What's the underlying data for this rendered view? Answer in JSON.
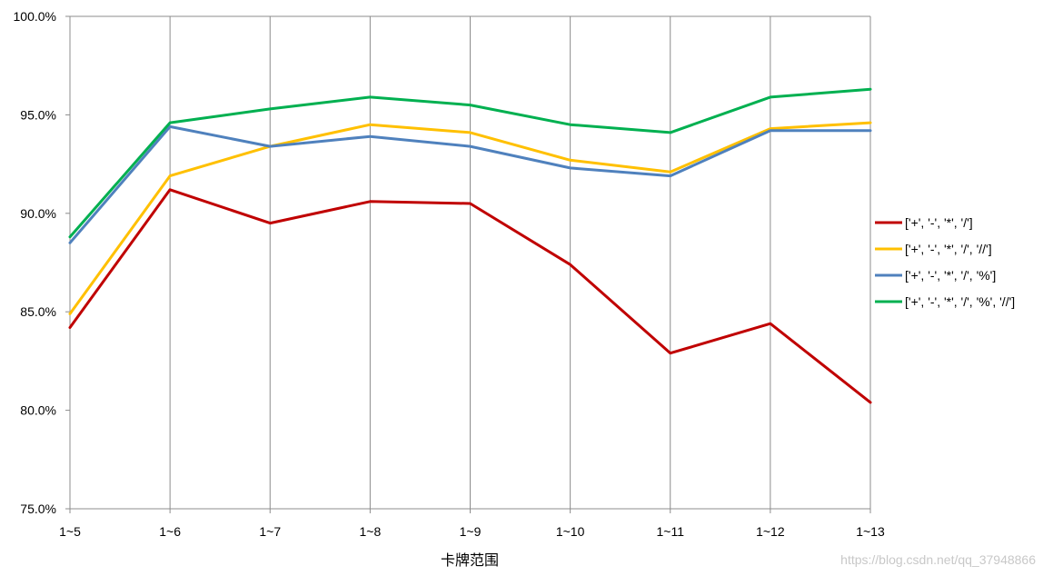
{
  "chart_data": {
    "type": "line",
    "title": "",
    "xlabel": "卡牌范围",
    "ylabel": "",
    "x": [
      "1~5",
      "1~6",
      "1~7",
      "1~8",
      "1~9",
      "1~10",
      "1~11",
      "1~12",
      "1~13"
    ],
    "ylim": [
      75.0,
      100.0
    ],
    "yticks": [
      75.0,
      80.0,
      85.0,
      90.0,
      95.0,
      100.0
    ],
    "ytick_labels": [
      "75.0%",
      "80.0%",
      "85.0%",
      "90.0%",
      "95.0%",
      "100.0%"
    ],
    "grid": "vertical",
    "legend_position": "right",
    "series": [
      {
        "name": "['+', '-', '*', '/']",
        "color": "#C00000",
        "values": [
          84.2,
          91.2,
          89.5,
          90.6,
          90.5,
          87.4,
          82.9,
          84.4,
          80.4
        ]
      },
      {
        "name": "['+', '-', '*', '/', '//']",
        "color": "#FFC000",
        "values": [
          84.9,
          91.9,
          93.4,
          94.5,
          94.1,
          92.7,
          92.1,
          94.3,
          94.6
        ]
      },
      {
        "name": "['+', '-', '*', '/', '%']",
        "color": "#4F81BD",
        "values": [
          88.5,
          94.4,
          93.4,
          93.9,
          93.4,
          92.3,
          91.9,
          94.2,
          94.2
        ]
      },
      {
        "name": "['+', '-', '*', '/', '%', '//']",
        "color": "#00B050",
        "values": [
          88.8,
          94.6,
          95.3,
          95.9,
          95.5,
          94.5,
          94.1,
          95.9,
          96.3
        ]
      }
    ]
  },
  "watermark": "https://blog.csdn.net/qq_37948866"
}
